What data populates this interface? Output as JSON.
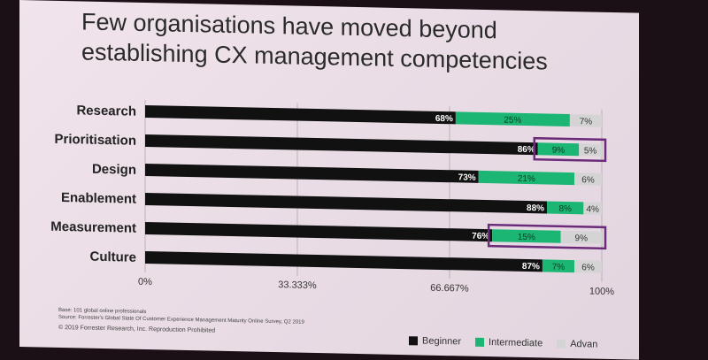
{
  "title": {
    "line1": "Few organisations have moved beyond",
    "line2": "establishing CX management competencies"
  },
  "colors": {
    "beginner": "#111111",
    "intermediate": "#1bb574",
    "advanced": "#d4d4d4",
    "highlight": "#6b2a7a"
  },
  "chart_data": {
    "type": "bar",
    "orientation": "horizontal",
    "stacked": true,
    "categories": [
      "Research",
      "Prioritisation",
      "Design",
      "Enablement",
      "Measurement",
      "Culture"
    ],
    "series": [
      {
        "name": "Beginner",
        "values": [
          68,
          86,
          73,
          88,
          76,
          87
        ],
        "labels": [
          "68%",
          "86%",
          "73%",
          "88%",
          "76%",
          "87%"
        ]
      },
      {
        "name": "Intermediate",
        "values": [
          25,
          9,
          21,
          8,
          15,
          7
        ],
        "labels": [
          "25%",
          "9%",
          "21%",
          "8%",
          "15%",
          "7%"
        ]
      },
      {
        "name": "Advanced",
        "values": [
          7,
          5,
          6,
          4,
          9,
          6
        ],
        "labels": [
          "7%",
          "5%",
          "6%",
          "4%",
          "9%",
          "6%"
        ]
      }
    ],
    "xlim": [
      0,
      100
    ],
    "x_ticks": [
      "0%",
      "33.333%",
      "66.667%",
      "100%"
    ],
    "x_tick_values": [
      0,
      33.333,
      66.667,
      100
    ],
    "highlighted": [
      "Prioritisation",
      "Measurement"
    ],
    "grid": "vertical",
    "legend_position": "bottom-right"
  },
  "legend": {
    "beginner": "Beginner",
    "intermediate": "Intermediate",
    "advanced": "Advan"
  },
  "footnote": {
    "base": "Base: 101 global online professionals",
    "source": "Source: Forrester's Global State Of Customer Experience Management Maturity Online Survey, Q2 2019",
    "copyright": "© 2019 Forrester Research, Inc. Reproduction Prohibited"
  }
}
